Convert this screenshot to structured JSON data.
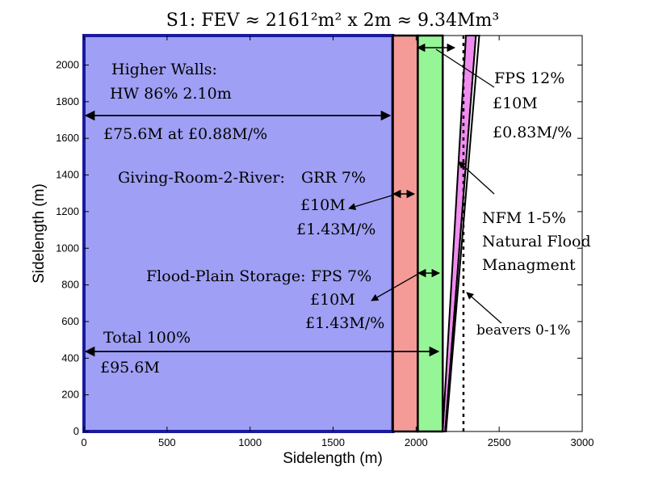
{
  "chart_data": {
    "type": "area",
    "title": "S1: FEV ≈ 2161²m² x 2m ≈ 9.34Mm³",
    "xlabel": "Sidelength (m)",
    "ylabel": "Sidelength (m)",
    "xlim": [
      0,
      3000
    ],
    "ylim": [
      0,
      2161
    ],
    "xticks": [
      0,
      500,
      1000,
      1500,
      2000,
      2500,
      3000
    ],
    "yticks": [
      0,
      200,
      400,
      600,
      800,
      1000,
      1200,
      1400,
      1600,
      1800,
      2000
    ],
    "series": [
      {
        "name": "Higher Walls",
        "x": [
          0,
          1860
        ],
        "y": [
          0,
          2161
        ],
        "color": "#9f9ff5",
        "edge": "#1a1aa0"
      },
      {
        "name": "Giving-Room-2-River",
        "x": [
          1860,
          2010
        ],
        "y": [
          0,
          2161
        ],
        "color": "#f49a97",
        "edge": "#000000"
      },
      {
        "name": "Flood-Plain Storage",
        "x": [
          2010,
          2160
        ],
        "y": [
          0,
          2161
        ],
        "color": "#96f596",
        "edge": "#000000"
      },
      {
        "name": "Natural Flood Managment",
        "x_bottom": [
          2160,
          2175
        ],
        "x_top": [
          2300,
          2360
        ],
        "color": "#f08cf0",
        "edge": "#000000"
      },
      {
        "name": "beavers",
        "x_bottom": [
          2175,
          2180
        ],
        "x_top": [
          2360,
          2380
        ],
        "color": "#ffffff",
        "edge": "#000000"
      }
    ],
    "reference_line": {
      "x": 2285,
      "style": "dotted"
    }
  },
  "annotations": {
    "hw_title": "Higher Walls:",
    "hw_pct": "HW 86% 2.10m",
    "hw_cost": "£75.6M at £0.88M/%",
    "grr_title": "Giving-Room-2-River:",
    "grr_pct": "GRR 7%",
    "grr_cost": "£10M",
    "grr_rate": "£1.43M/%",
    "fps_title": "Flood-Plain Storage:",
    "fps_pct": "FPS 7%",
    "fps_cost": "£10M",
    "fps_rate": "£1.43M/%",
    "total_pct": "Total 100%",
    "total_cost": "£95.6M",
    "fps12_pct": "FPS 12%",
    "fps12_cost": "£10M",
    "fps12_rate": "£0.83M/%",
    "nfm_pct": "NFM 1-5%",
    "nfm_line1": "Natural Flood",
    "nfm_line2": "Managment",
    "beavers": "beavers 0-1%"
  }
}
